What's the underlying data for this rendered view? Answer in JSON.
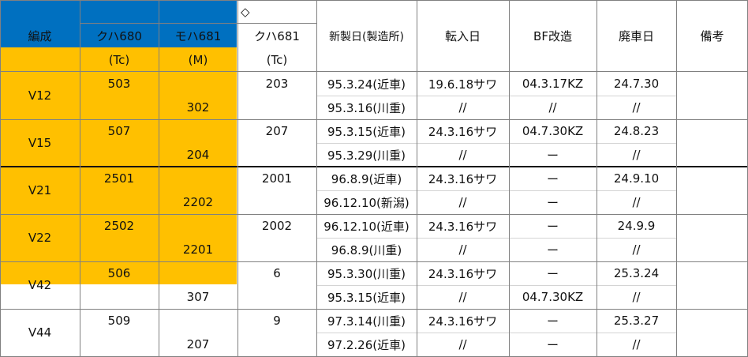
{
  "colors": {
    "blue": "#0070c0",
    "yellow": "#ffc000"
  },
  "header": {
    "formation": "編成",
    "diamond": "◇",
    "car1": {
      "type": "クハ680",
      "code": "(Tc)"
    },
    "car2": {
      "type": "モハ681",
      "code": "(M)"
    },
    "car3": {
      "type": "クハ681",
      "code": "(Tc)"
    },
    "built": "新製日(製造所)",
    "transfer": "転入日",
    "bf": "BF改造",
    "retired": "廃車日",
    "notes": "備考"
  },
  "rows": [
    {
      "formation": "V12",
      "color": "blue",
      "car1": "503",
      "car2": "302",
      "car3": "203",
      "built_a": "95.3.24(近車)",
      "built_b": "95.3.16(川重)",
      "transfer_a": "19.6.18サワ",
      "transfer_b": "//",
      "bf_a": "04.3.17KZ",
      "bf_b": "//",
      "retired_a": "24.7.30",
      "retired_b": "//"
    },
    {
      "formation": "V15",
      "color": "yellow",
      "car1": "507",
      "car2": "204",
      "car3": "207",
      "built_a": "95.3.15(近車)",
      "built_b": "95.3.29(川重)",
      "transfer_a": "24.3.16サワ",
      "transfer_b": "//",
      "bf_a": "04.7.30KZ",
      "bf_b": "ー",
      "retired_a": "24.8.23",
      "retired_b": "//"
    },
    {
      "formation": "V21",
      "color": "yellow",
      "car1": "2501",
      "car2": "2202",
      "car3": "2001",
      "built_a": "96.8.9(近車)",
      "built_b": "96.12.10(新潟)",
      "transfer_a": "24.3.16サワ",
      "transfer_b": "//",
      "bf_a": "ー",
      "bf_b": "ー",
      "retired_a": "24.9.10",
      "retired_b": "//"
    },
    {
      "formation": "V22",
      "color": "yellow",
      "car1": "2502",
      "car2": "2201",
      "car3": "2002",
      "built_a": "96.12.10(近車)",
      "built_b": "96.8.9(川重)",
      "transfer_a": "24.3.16サワ",
      "transfer_b": "//",
      "bf_a": "ー",
      "bf_b": "ー",
      "retired_a": "24.9.9",
      "retired_b": "//"
    },
    {
      "formation": "V42",
      "color": "yellow",
      "car1": "506",
      "car2": "307",
      "car3": "6",
      "built_a": "95.3.30(川重)",
      "built_b": "95.3.15(近車)",
      "transfer_a": "24.3.16サワ",
      "transfer_b": "//",
      "bf_a": "ー",
      "bf_b": "04.7.30KZ",
      "retired_a": "25.3.24",
      "retired_b": "//"
    },
    {
      "formation": "V44",
      "color": "yellow",
      "car1": "509",
      "car2": "207",
      "car3": "9",
      "built_a": "97.3.14(川重)",
      "built_b": "97.2.26(近車)",
      "transfer_a": "24.3.16サワ",
      "transfer_b": "//",
      "bf_a": "ー",
      "bf_b": "ー",
      "retired_a": "25.3.27",
      "retired_b": "//"
    }
  ]
}
